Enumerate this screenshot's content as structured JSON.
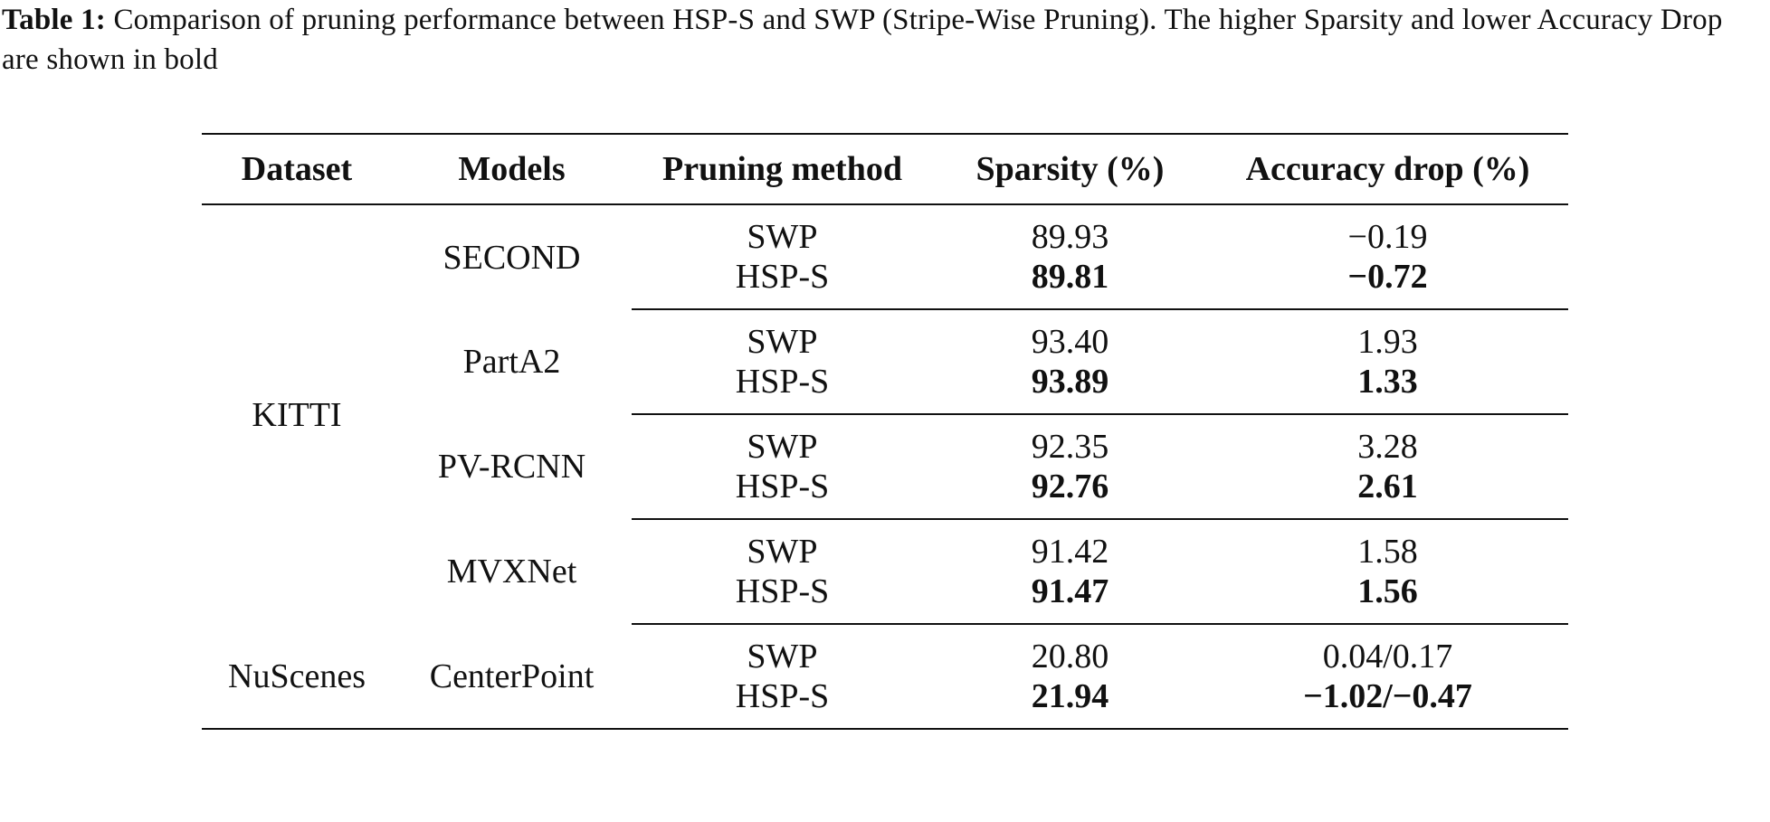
{
  "caption": {
    "label": "Table 1:",
    "text": "Comparison of pruning performance between HSP-S and SWP (Stripe-Wise Pruning). The higher Sparsity and lower Accuracy Drop are shown in bold"
  },
  "table": {
    "headers": [
      "Dataset",
      "Models",
      "Pruning method",
      "Sparsity (%)",
      "Accuracy drop (%)"
    ],
    "datasets": [
      {
        "name": "KITTI",
        "models": [
          {
            "name": "SECOND",
            "rows": [
              {
                "method": "SWP",
                "sparsity": "89.93",
                "accuracy_drop": "−0.19"
              },
              {
                "method": "HSP-S",
                "sparsity": "89.81",
                "accuracy_drop": "−0.72"
              }
            ]
          },
          {
            "name": "PartA2",
            "rows": [
              {
                "method": "SWP",
                "sparsity": "93.40",
                "accuracy_drop": "1.93"
              },
              {
                "method": "HSP-S",
                "sparsity": "93.89",
                "accuracy_drop": "1.33"
              }
            ]
          },
          {
            "name": "PV-RCNN",
            "rows": [
              {
                "method": "SWP",
                "sparsity": "92.35",
                "accuracy_drop": "3.28"
              },
              {
                "method": "HSP-S",
                "sparsity": "92.76",
                "accuracy_drop": "2.61"
              }
            ]
          },
          {
            "name": "MVXNet",
            "rows": [
              {
                "method": "SWP",
                "sparsity": "91.42",
                "accuracy_drop": "1.58"
              },
              {
                "method": "HSP-S",
                "sparsity": "91.47",
                "accuracy_drop": "1.56"
              }
            ]
          }
        ]
      },
      {
        "name": "NuScenes",
        "models": [
          {
            "name": "CenterPoint",
            "rows": [
              {
                "method": "SWP",
                "sparsity": "20.80",
                "accuracy_drop": "0.04/0.17"
              },
              {
                "method": "HSP-S",
                "sparsity": "21.94",
                "accuracy_drop": "−1.02/−0.47"
              }
            ]
          }
        ]
      }
    ]
  }
}
